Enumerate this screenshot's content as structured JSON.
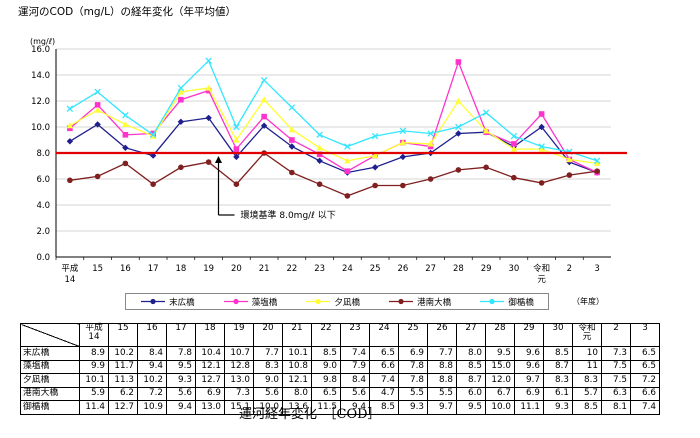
{
  "title": "運河のCOD（mg/L）の経年変化（年平均値）",
  "caption": "運河経年変化　［COD］",
  "chart_data": {
    "type": "line",
    "title": "運河のCOD（mg/L）の経年変化（年平均値）",
    "ylabel": "(mg/ℓ)",
    "xlabel": "（年度）",
    "ylim": [
      0,
      16
    ],
    "yticks": [
      "0.0",
      "2.0",
      "4.0",
      "6.0",
      "8.0",
      "10.0",
      "12.0",
      "14.0",
      "16.0"
    ],
    "categories": [
      "平成14",
      "15",
      "16",
      "17",
      "18",
      "19",
      "20",
      "21",
      "22",
      "23",
      "24",
      "25",
      "26",
      "27",
      "28",
      "29",
      "30",
      "令和元",
      "2",
      "3"
    ],
    "series": [
      {
        "name": "末広橋",
        "color": "#1f1f8f",
        "marker": "diamond",
        "values": [
          8.9,
          10.2,
          8.4,
          7.8,
          10.4,
          10.7,
          7.7,
          10.1,
          8.5,
          7.4,
          6.5,
          6.9,
          7.7,
          8.0,
          9.5,
          9.6,
          8.5,
          10.0,
          7.3,
          6.5
        ]
      },
      {
        "name": "藻塩橋",
        "color": "#ff33cc",
        "marker": "square",
        "values": [
          9.9,
          11.7,
          9.4,
          9.5,
          12.1,
          12.8,
          8.3,
          10.8,
          9.0,
          7.9,
          6.6,
          7.8,
          8.8,
          8.5,
          15.0,
          9.6,
          8.7,
          11.0,
          7.5,
          6.5
        ]
      },
      {
        "name": "夕凪橋",
        "color": "#ffff33",
        "marker": "triangle",
        "values": [
          10.1,
          11.3,
          10.2,
          9.3,
          12.7,
          13.0,
          9.0,
          12.1,
          9.8,
          8.4,
          7.4,
          7.8,
          8.8,
          8.7,
          12.0,
          9.7,
          8.3,
          8.3,
          7.5,
          7.2
        ]
      },
      {
        "name": "港南大橋",
        "color": "#7f1f1f",
        "marker": "circle",
        "values": [
          5.9,
          6.2,
          7.2,
          5.6,
          6.9,
          7.3,
          5.6,
          8.0,
          6.5,
          5.6,
          4.7,
          5.5,
          5.5,
          6.0,
          6.7,
          6.9,
          6.1,
          5.7,
          6.3,
          6.6
        ]
      },
      {
        "name": "御楯橋",
        "color": "#33e6ff",
        "marker": "x",
        "values": [
          11.4,
          12.7,
          10.9,
          9.4,
          13.0,
          15.1,
          10.0,
          13.6,
          11.5,
          9.4,
          8.5,
          9.3,
          9.7,
          9.5,
          10.0,
          11.1,
          9.3,
          8.5,
          8.1,
          7.4
        ]
      }
    ],
    "threshold": {
      "value": 8.0,
      "label": "環境基準 8.0mg/ℓ 以下",
      "color": "#e00000"
    },
    "legend": "bottom"
  },
  "table": {
    "years": [
      "平成14",
      "15",
      "16",
      "17",
      "18",
      "19",
      "20",
      "21",
      "22",
      "23",
      "24",
      "25",
      "26",
      "27",
      "28",
      "29",
      "30",
      "令和元",
      "2",
      "3"
    ],
    "rows": [
      {
        "name": "末広橋",
        "values": [
          "8.9",
          "10.2",
          "8.4",
          "7.8",
          "10.4",
          "10.7",
          "7.7",
          "10.1",
          "8.5",
          "7.4",
          "6.5",
          "6.9",
          "7.7",
          "8.0",
          "9.5",
          "9.6",
          "8.5",
          "10",
          "7.3",
          "6.5"
        ]
      },
      {
        "name": "藻塩橋",
        "values": [
          "9.9",
          "11.7",
          "9.4",
          "9.5",
          "12.1",
          "12.8",
          "8.3",
          "10.8",
          "9.0",
          "7.9",
          "6.6",
          "7.8",
          "8.8",
          "8.5",
          "15.0",
          "9.6",
          "8.7",
          "11",
          "7.5",
          "6.5"
        ]
      },
      {
        "name": "夕凪橋",
        "values": [
          "10.1",
          "11.3",
          "10.2",
          "9.3",
          "12.7",
          "13.0",
          "9.0",
          "12.1",
          "9.8",
          "8.4",
          "7.4",
          "7.8",
          "8.8",
          "8.7",
          "12.0",
          "9.7",
          "8.3",
          "8.3",
          "7.5",
          "7.2"
        ]
      },
      {
        "name": "港南大橋",
        "values": [
          "5.9",
          "6.2",
          "7.2",
          "5.6",
          "6.9",
          "7.3",
          "5.6",
          "8.0",
          "6.5",
          "5.6",
          "4.7",
          "5.5",
          "5.5",
          "6.0",
          "6.7",
          "6.9",
          "6.1",
          "5.7",
          "6.3",
          "6.6"
        ]
      },
      {
        "name": "御楯橋",
        "values": [
          "11.4",
          "12.7",
          "10.9",
          "9.4",
          "13.0",
          "15.1",
          "10.0",
          "13.6",
          "11.5",
          "9.4",
          "8.5",
          "9.3",
          "9.7",
          "9.5",
          "10.0",
          "11.1",
          "9.3",
          "8.5",
          "8.1",
          "7.4"
        ]
      }
    ]
  }
}
